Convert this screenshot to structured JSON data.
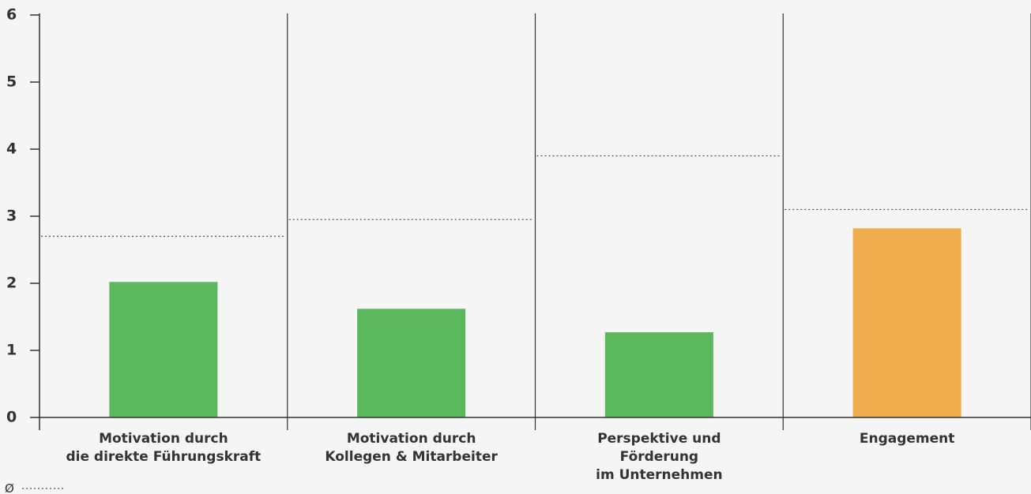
{
  "chart_data": {
    "type": "bar",
    "categories": [
      [
        "Motivation durch",
        "die direkte Führungskraft"
      ],
      [
        "Motivation durch",
        "Kollegen & Mitarbeiter"
      ],
      [
        "Perspektive und",
        "Förderung",
        "im Unternehmen"
      ],
      [
        "Engagement"
      ]
    ],
    "values": [
      2.02,
      1.62,
      1.27,
      2.82
    ],
    "colors": [
      "#5cb85c",
      "#5cb85c",
      "#5cb85c",
      "#f0ad4e"
    ],
    "average": {
      "name": "Ø",
      "values": [
        2.7,
        2.95,
        3.9,
        3.1
      ]
    },
    "ylim": [
      0,
      6
    ],
    "yticks": [
      0,
      1,
      2,
      3,
      4,
      5,
      6
    ]
  }
}
